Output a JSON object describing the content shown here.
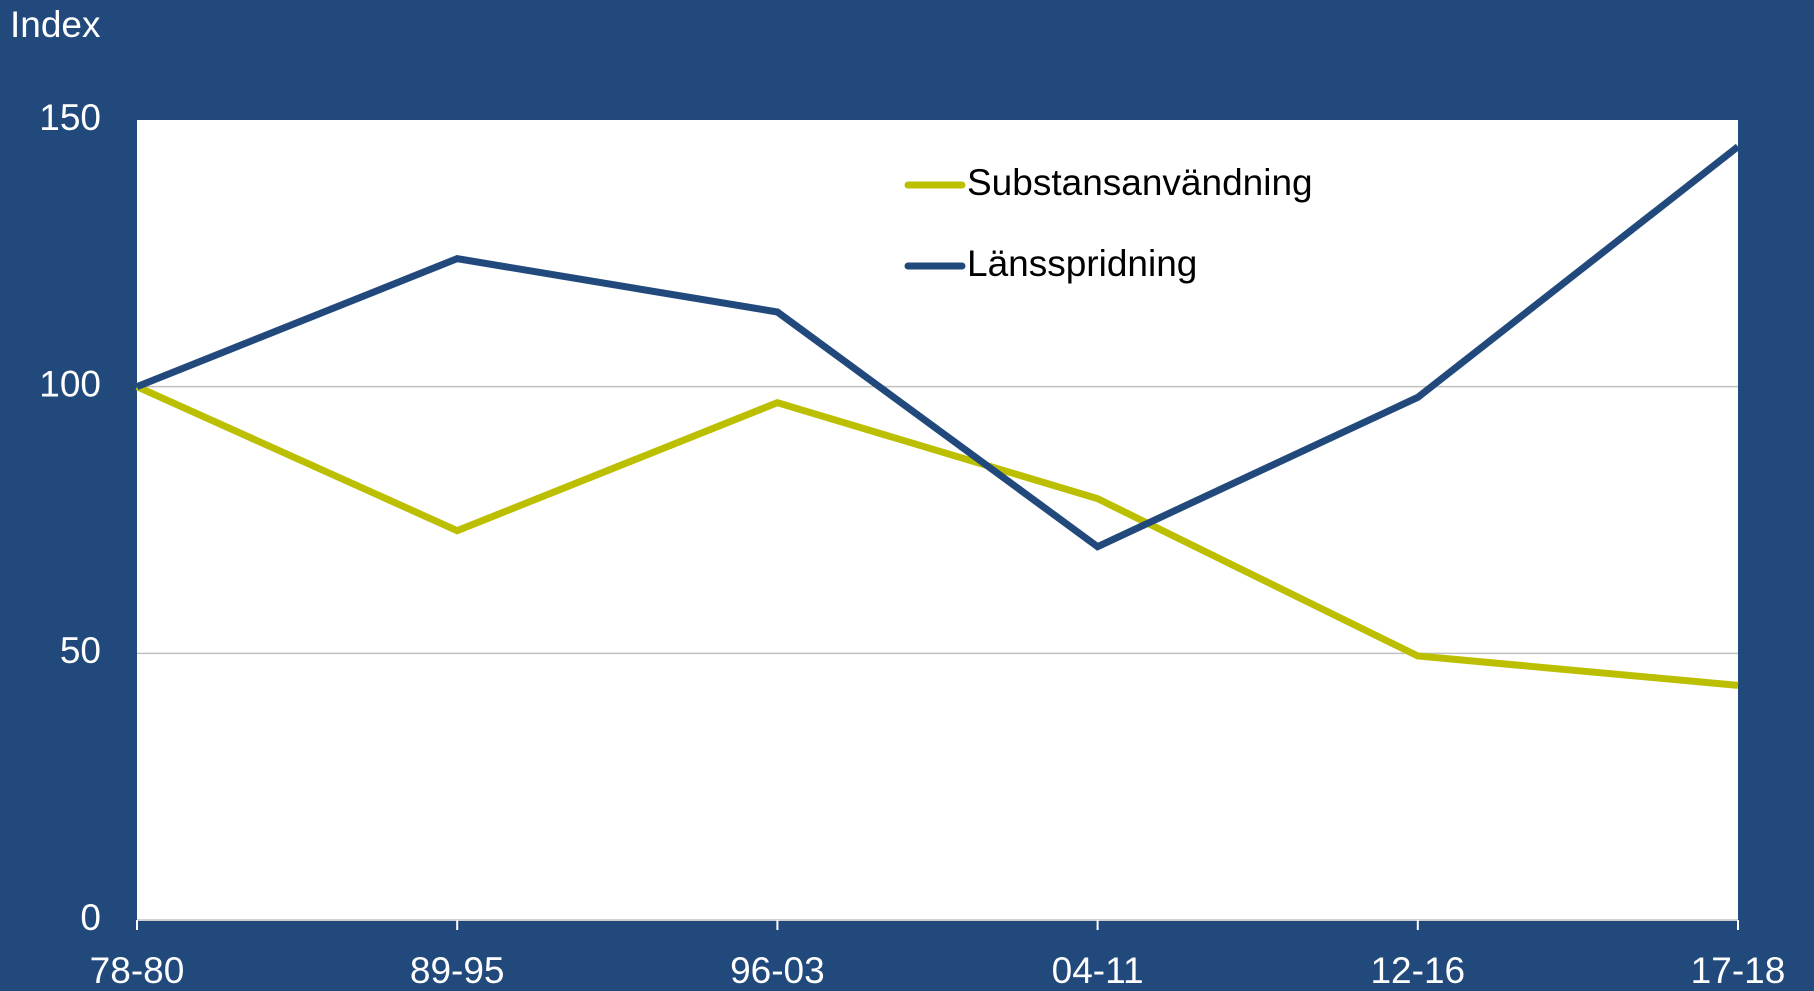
{
  "chart_data": {
    "type": "line",
    "y_label": "Index",
    "categories": [
      "78-80",
      "89-95",
      "96-03",
      "04-11",
      "12-16",
      "17-18"
    ],
    "series": [
      {
        "name": "Substansanvändning",
        "color": "#bcbf00",
        "values": [
          100,
          73,
          97,
          79,
          49.5,
          44
        ]
      },
      {
        "name": "Länsspridning",
        "color": "#22497c",
        "values": [
          100,
          124,
          114,
          70,
          98,
          145
        ]
      }
    ],
    "ylim": [
      0,
      150
    ],
    "yticks": [
      0,
      50,
      100,
      150
    ],
    "grid": true,
    "legend": "top"
  }
}
